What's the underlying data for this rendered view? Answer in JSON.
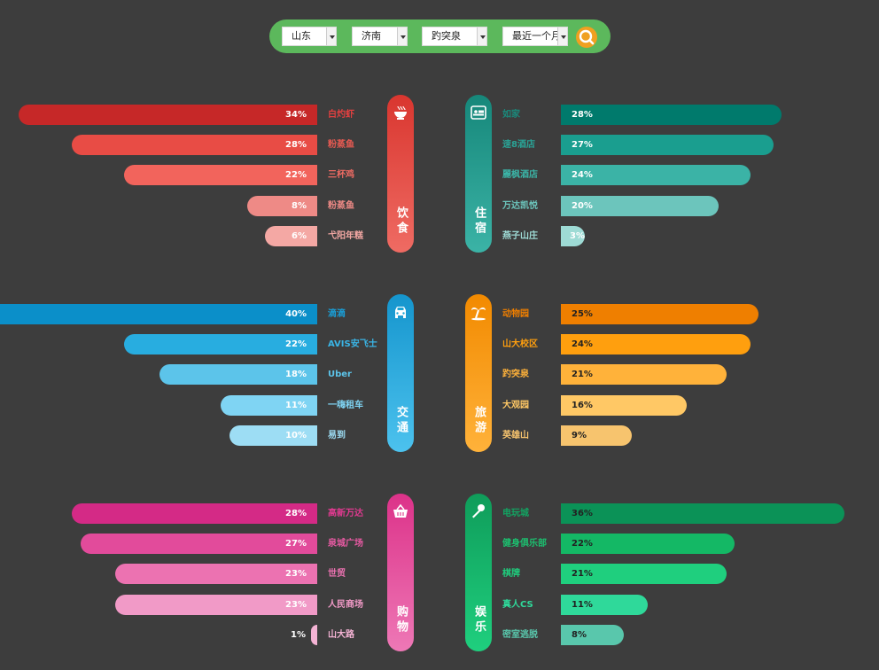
{
  "filters": {
    "province": "山东",
    "city": "济南",
    "spot": "趵突泉",
    "period": "最近一个月"
  },
  "chart_data": [
    {
      "type": "bar",
      "title": "饮食",
      "side": "left",
      "color": "#d7362f",
      "categories": [
        "白灼虾",
        "粉蒸鱼",
        "三杯鸡",
        "粉蒸鱼",
        "弋阳年糕"
      ],
      "values": [
        34,
        28,
        22,
        8,
        6
      ],
      "labels": [
        "34%",
        "28%",
        "22%",
        "8%",
        "6%"
      ],
      "bar_colors": [
        "#c62828",
        "#e84c45",
        "#f2645c",
        "#ee8a86",
        "#f4a8a4"
      ],
      "label_colors": [
        "#e04040",
        "#e85a52",
        "#ef6b63",
        "#ee8a86",
        "#f4a8a4"
      ]
    },
    {
      "type": "bar",
      "title": "住宿",
      "side": "right",
      "color": "#1f9488",
      "categories": [
        "如家",
        "速8酒店",
        "麗枫酒店",
        "万达凯悦",
        "燕子山庄"
      ],
      "values": [
        28,
        27,
        24,
        20,
        3
      ],
      "labels": [
        "28%",
        "27%",
        "24%",
        "20%",
        "3%"
      ],
      "bar_colors": [
        "#007a6c",
        "#1a9e8f",
        "#3bb3a6",
        "#6cc5bc",
        "#9edbd5"
      ],
      "label_colors": [
        "#1a8a7c",
        "#2aa396",
        "#3bb3a6",
        "#6cc5bc",
        "#9edbd5"
      ]
    },
    {
      "type": "bar",
      "title": "交通",
      "side": "left",
      "color": "#1fa6d6",
      "categories": [
        "滴滴",
        "AVIS安飞士",
        "Uber",
        "一嗨租车",
        "易到"
      ],
      "values": [
        40,
        22,
        18,
        11,
        10
      ],
      "labels": [
        "40%",
        "22%",
        "18%",
        "11%",
        "10%"
      ],
      "bar_colors": [
        "#0b8fc9",
        "#28ade0",
        "#5cc4ea",
        "#7fd4f3",
        "#9dddf4"
      ],
      "label_colors": [
        "#1a9ed6",
        "#3ab5e6",
        "#5cc4ea",
        "#7fd4f3",
        "#9dddf4"
      ]
    },
    {
      "type": "bar",
      "title": "旅游",
      "side": "right",
      "color": "#f39a1c",
      "categories": [
        "动物园",
        "山大校区",
        "趵突泉",
        "大观园",
        "英雄山"
      ],
      "values": [
        25,
        24,
        21,
        16,
        9
      ],
      "labels": [
        "25%",
        "24%",
        "21%",
        "16%",
        "9%"
      ],
      "bar_colors": [
        "#ef7f00",
        "#ff9f0e",
        "#ffb23a",
        "#ffc865",
        "#f7c46e"
      ],
      "label_colors": [
        "#ef7f00",
        "#ff9f0e",
        "#ffb23a",
        "#ffc865",
        "#f7c46e"
      ],
      "dark_text": true
    },
    {
      "type": "bar",
      "title": "购物",
      "side": "left",
      "color": "#e0428f",
      "categories": [
        "高新万达",
        "泉城广场",
        "世贸",
        "人民商场",
        "山大路"
      ],
      "values": [
        28,
        27,
        23,
        23,
        1
      ],
      "labels": [
        "28%",
        "27%",
        "23%",
        "23%",
        "1%"
      ],
      "bar_colors": [
        "#d42a86",
        "#e24b9b",
        "#ec72b1",
        "#f19ac7",
        "#f4b3d4"
      ],
      "label_colors": [
        "#e03a90",
        "#e85aa3",
        "#ec72b1",
        "#f19ac7",
        "#f4b3d4"
      ]
    },
    {
      "type": "bar",
      "title": "娱乐",
      "side": "right",
      "color": "#17b06b",
      "categories": [
        "电玩城",
        "健身俱乐部",
        "棋牌",
        "真人CS",
        "密室逃脱"
      ],
      "values": [
        36,
        22,
        21,
        11,
        8
      ],
      "labels": [
        "36%",
        "22%",
        "21%",
        "11%",
        "8%"
      ],
      "bar_colors": [
        "#0b9257",
        "#14b865",
        "#1fcf7e",
        "#2fd99a",
        "#59c7ac"
      ],
      "label_colors": [
        "#12a462",
        "#1cbf6f",
        "#1fcf7e",
        "#2fd99a",
        "#59c7ac"
      ],
      "dark_text": true
    }
  ],
  "icons": [
    "bowl-icon",
    "bed-icon",
    "car-icon",
    "palm-tree-icon",
    "basket-icon",
    "microphone-icon",
    "search-icon"
  ],
  "colors": {
    "background": "#3d3d3d",
    "filter_bar": "#5cb85c",
    "search_button": "#f0a020"
  }
}
